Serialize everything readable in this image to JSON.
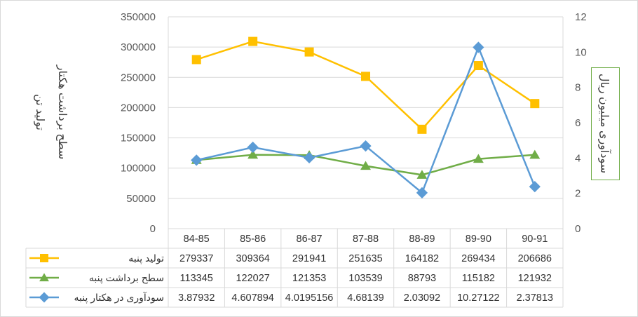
{
  "chart_data": {
    "type": "line",
    "categories": [
      "84-85",
      "85-86",
      "86-87",
      "87-88",
      "88-89",
      "89-90",
      "90-91"
    ],
    "y_axis_left": {
      "label_lines": [
        "تولید تن",
        "سطح برداشت هکتار"
      ],
      "range": [
        0,
        350000
      ],
      "ticks": [
        "0",
        "50000",
        "100000",
        "150000",
        "200000",
        "250000",
        "300000",
        "350000"
      ]
    },
    "y_axis_right": {
      "label": "سودآوری میلیون ریال",
      "range": [
        0,
        12
      ],
      "ticks": [
        "0",
        "2",
        "4",
        "6",
        "8",
        "10",
        "12"
      ]
    },
    "grid": true,
    "data_table": true,
    "series": [
      {
        "name": "تولید پنبه",
        "axis": "left",
        "color": "#ffc000",
        "marker": "square",
        "values": [
          279337,
          309364,
          291941,
          251635,
          164182,
          269434,
          206686
        ],
        "labels": [
          "279337",
          "309364",
          "291941",
          "251635",
          "164182",
          "269434",
          "206686"
        ]
      },
      {
        "name": "سطح برداشت پنبه",
        "axis": "left",
        "color": "#70ad47",
        "marker": "triangle",
        "values": [
          113345,
          122027,
          121353,
          103539,
          88793,
          115182,
          121932
        ],
        "labels": [
          "113345",
          "122027",
          "121353",
          "103539",
          "88793",
          "115182",
          "121932"
        ]
      },
      {
        "name": "سودآوری در هکتار پنبه",
        "axis": "right",
        "color": "#5b9bd5",
        "marker": "diamond",
        "values": [
          3.87932,
          4.607894,
          4.0195156,
          4.68139,
          2.03092,
          10.27122,
          2.37813
        ],
        "labels": [
          "3.87932",
          "4.607894",
          "4.0195156",
          "4.68139",
          "2.03092",
          "10.27122",
          "2.37813"
        ]
      }
    ]
  }
}
